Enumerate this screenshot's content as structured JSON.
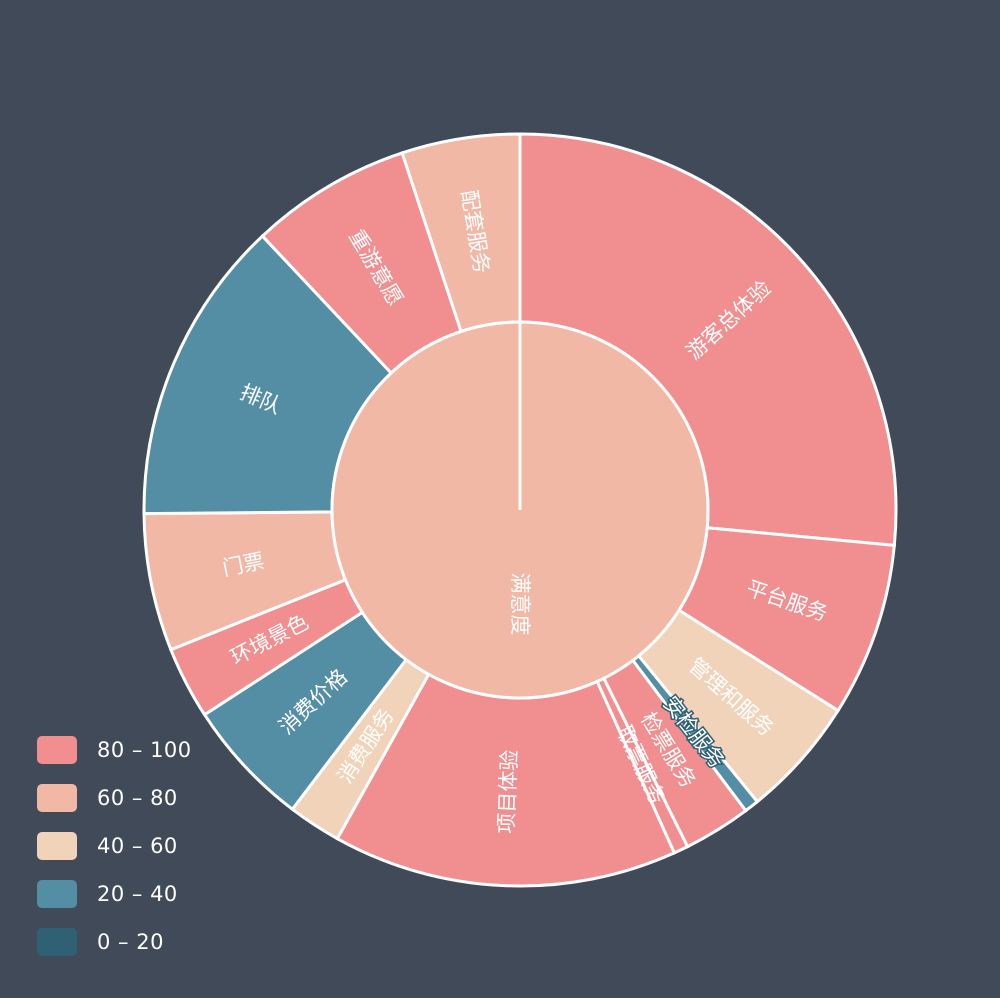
{
  "chart_data": {
    "type": "sunburst",
    "title": "",
    "root": {
      "name": "满意度",
      "value": 100,
      "score": 70,
      "children": [
        {
          "name": "游客总体验",
          "value": 25.6,
          "score": 85
        },
        {
          "name": "平台服务",
          "value": 7.2,
          "score": 85
        },
        {
          "name": "管理和服务",
          "value": 5.0,
          "score": 50
        },
        {
          "name": "安检服务",
          "value": 0.6,
          "score": 30
        },
        {
          "name": "检票服务",
          "value": 2.8,
          "score": 85
        },
        {
          "name": "取票服务",
          "value": 0.6,
          "score": 85
        },
        {
          "name": "项目体验",
          "value": 14.3,
          "score": 85
        },
        {
          "name": "消费服务",
          "value": 2.2,
          "score": 50
        },
        {
          "name": "消费价格",
          "value": 5.3,
          "score": 30
        },
        {
          "name": "环境景色",
          "value": 3.0,
          "score": 85
        },
        {
          "name": "门票",
          "value": 5.7,
          "score": 70
        },
        {
          "name": "排队",
          "value": 12.7,
          "score": 30
        },
        {
          "name": "重游意愿",
          "value": 6.7,
          "score": 85
        },
        {
          "name": "配套服务",
          "value": 4.9,
          "score": 70
        }
      ]
    },
    "visual_map": {
      "placement": "bottom-left",
      "pieces": [
        {
          "label": "80 – 100",
          "min": 80,
          "max": 100,
          "color": "#f18e8f"
        },
        {
          "label": "60 – 80",
          "min": 60,
          "max": 80,
          "color": "#f1b8a6"
        },
        {
          "label": "40 – 60",
          "min": 40,
          "max": 60,
          "color": "#f1d3b9"
        },
        {
          "label": "20 – 40",
          "min": 20,
          "max": 40,
          "color": "#548ea5"
        },
        {
          "label": "0 – 20",
          "min": 0,
          "max": 20,
          "color": "#2f6073"
        }
      ]
    },
    "background_color": "#404a59",
    "border_color": "#ffffff",
    "label_color": "#ffffff"
  }
}
